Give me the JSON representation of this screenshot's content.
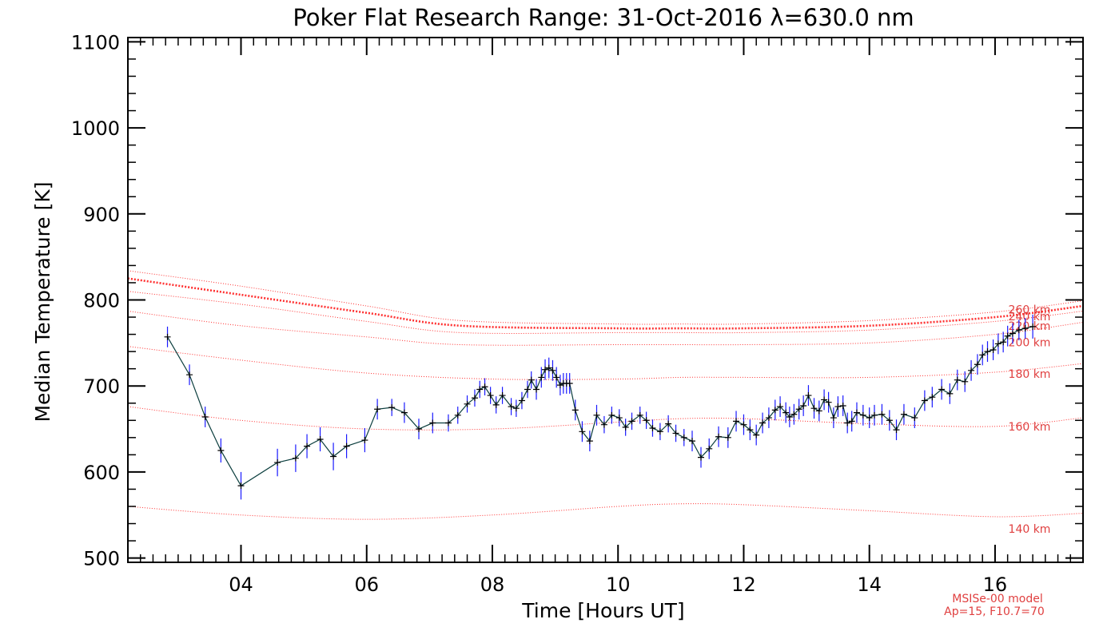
{
  "chart_data": {
    "type": "line",
    "title": "Poker Flat Research Range: 31-Oct-2016 λ=630.0 nm",
    "xlabel": "Time [Hours UT]",
    "ylabel": "Median Temperature [K]",
    "xlim": [
      2.2,
      17.4
    ],
    "ylim": [
      495,
      1105
    ],
    "xticks": [
      4,
      6,
      8,
      10,
      12,
      14,
      16
    ],
    "xtick_labels": [
      "04",
      "06",
      "08",
      "10",
      "12",
      "14",
      "16"
    ],
    "yticks": [
      500,
      600,
      700,
      800,
      900,
      1000,
      1100
    ],
    "ytick_labels": [
      "500",
      "600",
      "700",
      "800",
      "900",
      "1000",
      "1100"
    ],
    "grid": false,
    "annotation": [
      "MSISe-00 model",
      "Ap=15, F10.7=70"
    ],
    "colors": {
      "measured_line": "#0a3d3d",
      "error_bar": "#1a1aff",
      "marker": "#000000",
      "model": "#ff3030",
      "model_label": "#e04040"
    },
    "series": [
      {
        "kind": "measured",
        "x": [
          2.83,
          3.18,
          3.43,
          3.68,
          4.0,
          4.58,
          4.87,
          5.05,
          5.26,
          5.47,
          5.68,
          5.97,
          6.17,
          6.4,
          6.6,
          6.83,
          7.05,
          7.3,
          7.45,
          7.6,
          7.72,
          7.8,
          7.88,
          7.97,
          8.06,
          8.16,
          8.3,
          8.38,
          8.47,
          8.56,
          8.62,
          8.7,
          8.78,
          8.84,
          8.9,
          8.96,
          9.02,
          9.08,
          9.13,
          9.18,
          9.23,
          9.32,
          9.43,
          9.55,
          9.66,
          9.78,
          9.9,
          10.02,
          10.12,
          10.22,
          10.35,
          10.45,
          10.55,
          10.67,
          10.8,
          10.92,
          11.05,
          11.18,
          11.32,
          11.45,
          11.6,
          11.75,
          11.88,
          12.0,
          12.1,
          12.2,
          12.3,
          12.4,
          12.5,
          12.58,
          12.67,
          12.73,
          12.8,
          12.88,
          12.95,
          13.03,
          13.12,
          13.2,
          13.28,
          13.35,
          13.43,
          13.5,
          13.58,
          13.65,
          13.72,
          13.8,
          13.9,
          14.0,
          14.08,
          14.2,
          14.32,
          14.43,
          14.55,
          14.72,
          14.88,
          15.0,
          15.15,
          15.28,
          15.4,
          15.52,
          15.62,
          15.72,
          15.8,
          15.88,
          15.97,
          16.05,
          16.13,
          16.2,
          16.28,
          16.38,
          16.48,
          16.6
        ],
        "y": [
          757,
          713,
          664,
          625,
          584,
          611,
          616,
          630,
          638,
          618,
          630,
          637,
          673,
          675,
          669,
          650,
          657,
          657,
          666,
          679,
          686,
          696,
          699,
          689,
          678,
          689,
          676,
          674,
          683,
          696,
          707,
          696,
          710,
          719,
          721,
          718,
          710,
          701,
          703,
          703,
          703,
          672,
          647,
          636,
          666,
          655,
          666,
          663,
          652,
          659,
          666,
          660,
          651,
          647,
          656,
          645,
          640,
          636,
          617,
          627,
          641,
          640,
          659,
          655,
          649,
          643,
          657,
          663,
          672,
          676,
          669,
          664,
          667,
          673,
          677,
          689,
          674,
          671,
          684,
          681,
          663,
          676,
          677,
          657,
          659,
          669,
          666,
          663,
          666,
          667,
          660,
          649,
          667,
          663,
          683,
          687,
          696,
          691,
          707,
          705,
          718,
          725,
          736,
          740,
          742,
          749,
          751,
          758,
          761,
          765,
          767,
          769
        ],
        "yerr": [
          12,
          12,
          12,
          14,
          16,
          16,
          16,
          14,
          14,
          16,
          14,
          14,
          12,
          10,
          12,
          12,
          12,
          10,
          10,
          10,
          10,
          10,
          10,
          10,
          10,
          10,
          10,
          10,
          10,
          10,
          10,
          12,
          12,
          12,
          12,
          12,
          12,
          12,
          12,
          12,
          12,
          12,
          12,
          12,
          12,
          10,
          10,
          10,
          10,
          10,
          10,
          10,
          10,
          10,
          10,
          10,
          10,
          12,
          12,
          12,
          12,
          12,
          12,
          12,
          12,
          12,
          12,
          12,
          12,
          12,
          12,
          12,
          12,
          12,
          12,
          12,
          12,
          12,
          12,
          12,
          12,
          12,
          12,
          12,
          12,
          12,
          12,
          12,
          12,
          12,
          12,
          12,
          12,
          12,
          12,
          12,
          12,
          12,
          12,
          12,
          12,
          12,
          12,
          12,
          12,
          12,
          12,
          12,
          12,
          12,
          12,
          14
        ]
      },
      {
        "kind": "model",
        "name": "140 km",
        "label": "140 km",
        "label_y": 533,
        "thick": false,
        "x": [
          2.2,
          4,
          6,
          8,
          10,
          11,
          12,
          14,
          16,
          17.4
        ],
        "y": [
          560,
          550,
          545,
          550,
          560,
          563,
          562,
          555,
          548,
          552
        ]
      },
      {
        "kind": "model",
        "name": "160 km",
        "label": "160 km",
        "label_y": 652,
        "thick": false,
        "x": [
          2.2,
          4,
          6,
          8,
          10,
          11,
          12,
          14,
          16,
          17.4
        ],
        "y": [
          676,
          660,
          650,
          650,
          658,
          662,
          662,
          656,
          653,
          663
        ]
      },
      {
        "kind": "model",
        "name": "180 km",
        "label": "180 km",
        "label_y": 713,
        "thick": false,
        "x": [
          2.2,
          4,
          6,
          8,
          10,
          11,
          12,
          14,
          16,
          17.4
        ],
        "y": [
          746,
          730,
          715,
          708,
          708,
          710,
          710,
          710,
          716,
          726
        ]
      },
      {
        "kind": "model",
        "name": "200 km",
        "label": "200 km",
        "label_y": 750,
        "thick": false,
        "x": [
          2.2,
          4,
          6,
          7.5,
          10,
          11,
          12,
          14,
          16,
          17.4
        ],
        "y": [
          787,
          770,
          757,
          748,
          748,
          748,
          748,
          750,
          760,
          774
        ]
      },
      {
        "kind": "model",
        "name": "220 km",
        "label": "220 km",
        "label_y": 769,
        "thick": false,
        "x": [
          2.2,
          4,
          6,
          7.5,
          10,
          11,
          12,
          14,
          16,
          17.4
        ],
        "y": [
          810,
          795,
          775,
          762,
          762,
          762,
          762,
          765,
          775,
          787
        ]
      },
      {
        "kind": "model",
        "name": "240 km",
        "label": "240 km",
        "label_y": 780,
        "thick": true,
        "x": [
          2.2,
          4,
          6,
          7.5,
          10,
          11,
          12,
          14,
          16,
          17.4
        ],
        "y": [
          825,
          806,
          785,
          770,
          767,
          767,
          767,
          770,
          780,
          793
        ]
      },
      {
        "kind": "model",
        "name": "260 km",
        "label": "260 km",
        "label_y": 788,
        "thick": false,
        "x": [
          2.2,
          4,
          6,
          7.5,
          10,
          11,
          12,
          14,
          16,
          17.4
        ],
        "y": [
          834,
          816,
          793,
          776,
          772,
          772,
          772,
          776,
          786,
          799
        ]
      }
    ]
  }
}
